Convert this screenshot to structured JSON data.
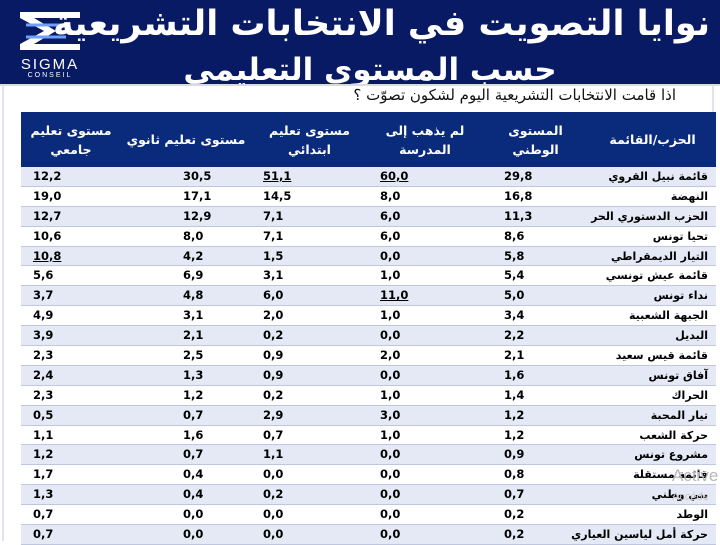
{
  "header": {
    "title_line1": "نوايا التصويت في الانتخابات التشريعية",
    "title_line2": "حسب المستوى التعليمي",
    "logo": {
      "name": "SIGMA",
      "sub": "CONSEIL"
    }
  },
  "question": "اذا قامت الانتخابات التشريعية اليوم لشكون تصوّت ؟",
  "table": {
    "headers": [
      "الحزب/القائمة",
      "المستوى\nالوطني",
      "لم يذهب إلى\nالمدرسة",
      "مستوى تعليم\nابتدائي",
      "مستوى تعليم ثانوي",
      "مستوى تعليم\nجامعي"
    ],
    "rows": [
      [
        "قائمة نبيل القروي",
        "29,8",
        "60,0",
        "51,1",
        "30,5",
        "12,2"
      ],
      [
        "النهضة",
        "16,8",
        "8,0",
        "14,5",
        "17,1",
        "19,0"
      ],
      [
        "الحزب الدستوري الحر",
        "11,3",
        "6,0",
        "7,1",
        "12,9",
        "12,7"
      ],
      [
        "تحيا تونس",
        "8,6",
        "6,0",
        "7,1",
        "8,0",
        "10,6"
      ],
      [
        "التيار الديمقراطي",
        "5,8",
        "0,0",
        "1,5",
        "4,2",
        "10,8"
      ],
      [
        "قائمة عيش تونسي",
        "5,4",
        "1,0",
        "3,1",
        "6,9",
        "5,6"
      ],
      [
        "نداء تونس",
        "5,0",
        "11,0",
        "6,0",
        "4,8",
        "3,7"
      ],
      [
        "الجبهة الشعبية",
        "3,4",
        "1,0",
        "2,0",
        "3,1",
        "4,9"
      ],
      [
        "البديل",
        "2,2",
        "0,0",
        "0,2",
        "2,1",
        "3,9"
      ],
      [
        "قائمة قيس سعيد",
        "2,1",
        "2,0",
        "0,9",
        "2,5",
        "2,3"
      ],
      [
        "آفاق تونس",
        "1,6",
        "0,0",
        "0,9",
        "1,3",
        "2,4"
      ],
      [
        "الحراك",
        "1,4",
        "1,0",
        "0,2",
        "1,2",
        "2,3"
      ],
      [
        "تيار المحبة",
        "1,2",
        "3,0",
        "2,9",
        "0,7",
        "0,5"
      ],
      [
        "حركة الشعب",
        "1,2",
        "1,0",
        "0,7",
        "1,6",
        "1,1"
      ],
      [
        "مشروع تونس",
        "0,9",
        "0,0",
        "1,1",
        "0,7",
        "1,2"
      ],
      [
        "قائمة مستقلة",
        "0,8",
        "0,0",
        "0,0",
        "0,4",
        "1,7"
      ],
      [
        "بني وطني",
        "0,7",
        "0,0",
        "0,2",
        "0,4",
        "1,3"
      ],
      [
        "الوطد",
        "0,2",
        "0,0",
        "0,0",
        "0,0",
        "0,7"
      ],
      [
        "حركة أمل لياسين العياري",
        "0,2",
        "0,0",
        "0,0",
        "0,0",
        "0,7"
      ]
    ]
  },
  "watermark": {
    "line1": "Active",
    "line2": "Accéde"
  },
  "colors": {
    "header_bg": "#071a63",
    "table_header_bg": "#0a2a7c",
    "row_alt": "#e4e9f5"
  }
}
